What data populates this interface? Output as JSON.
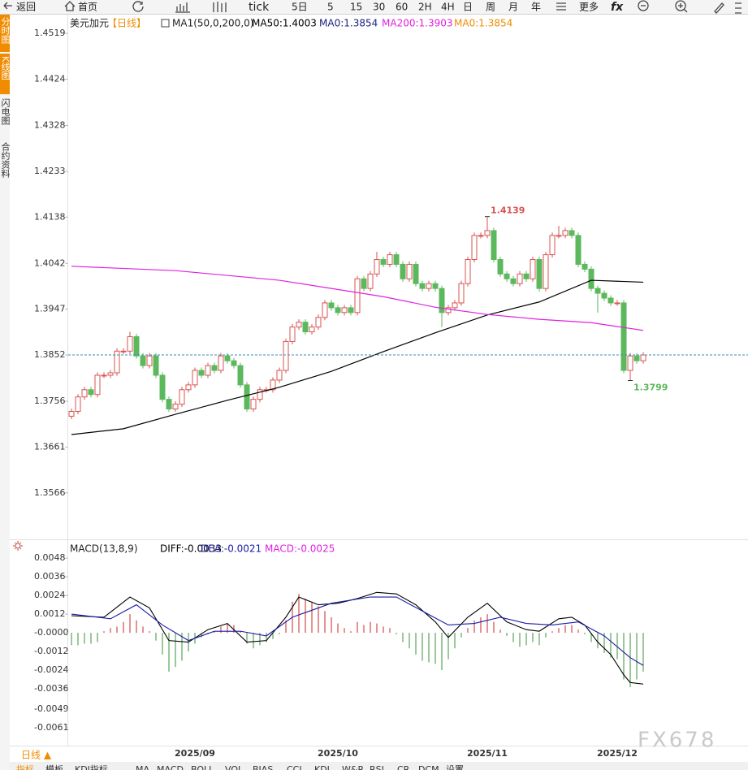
{
  "toolbar": [
    "返回",
    "首页",
    "tick",
    "5日",
    "5",
    "15",
    "30",
    "60",
    "2H",
    "4H",
    "日",
    "周",
    "月",
    "年",
    "更多",
    "fx"
  ],
  "side_tabs": [
    "分时图",
    "K线图",
    "闪电图",
    "合约资料"
  ],
  "footer": {
    "period": "日线 ▲",
    "tabs": [
      "指标",
      "模板",
      "KDJ指标",
      "MA",
      "MACD",
      "BOLL",
      "VOL",
      "BIAS",
      "CCI",
      "KDJ",
      "W&R",
      "RSI",
      "CR",
      "DCM",
      "设置"
    ]
  },
  "watermark": "FX678",
  "chart_data": [
    {
      "type": "candlestick",
      "title": "美元加元",
      "period": "【日线】",
      "indicator": "MA1(50,0,200,0)",
      "up_color": "#d9534f",
      "down_color": "#5cb85c",
      "categories": [
        null,
        null,
        null,
        null,
        null,
        null,
        null,
        null,
        null,
        null,
        null,
        null,
        null,
        null,
        null,
        null,
        null,
        null,
        null,
        "2025/09",
        null,
        null,
        null,
        null,
        null,
        null,
        null,
        null,
        null,
        null,
        null,
        null,
        null,
        null,
        null,
        null,
        null,
        null,
        null,
        null,
        null,
        "2025/10",
        null,
        null,
        null,
        null,
        null,
        null,
        null,
        null,
        null,
        null,
        null,
        null,
        null,
        null,
        null,
        null,
        null,
        null,
        null,
        null,
        null,
        null,
        "2025/11",
        null,
        null,
        null,
        null,
        null,
        null,
        null,
        null,
        null,
        null,
        null,
        null,
        null,
        null,
        null,
        null,
        null,
        null,
        null,
        "2025/12",
        null,
        null,
        null,
        null
      ],
      "open": [
        1.3725,
        1.3735,
        1.3765,
        1.378,
        1.377,
        1.381,
        1.381,
        1.3815,
        1.386,
        1.386,
        1.389,
        1.385,
        1.383,
        1.385,
        1.381,
        1.376,
        1.374,
        1.375,
        1.378,
        1.379,
        1.382,
        1.381,
        1.383,
        1.382,
        1.385,
        1.384,
        1.383,
        1.379,
        1.374,
        1.376,
        1.378,
        1.378,
        1.38,
        1.382,
        1.388,
        1.391,
        1.392,
        1.39,
        1.391,
        1.393,
        1.396,
        1.395,
        1.394,
        1.395,
        1.394,
        1.401,
        1.399,
        1.402,
        1.405,
        1.404,
        1.406,
        1.404,
        1.401,
        1.404,
        1.4,
        1.399,
        1.4,
        1.399,
        1.394,
        1.395,
        1.396,
        1.4,
        1.405,
        1.41,
        1.41,
        1.411,
        1.405,
        1.402,
        1.401,
        1.4,
        1.402,
        1.401,
        1.405,
        1.399,
        1.406,
        1.41,
        1.41,
        1.411,
        1.41,
        1.404,
        1.403,
        1.399,
        1.398,
        1.397,
        1.396,
        1.396,
        1.382,
        1.385,
        1.384
      ],
      "close": [
        1.3735,
        1.3765,
        1.378,
        1.377,
        1.381,
        1.381,
        1.3815,
        1.386,
        1.386,
        1.389,
        1.385,
        1.383,
        1.385,
        1.381,
        1.376,
        1.374,
        1.375,
        1.378,
        1.379,
        1.382,
        1.381,
        1.383,
        1.382,
        1.385,
        1.384,
        1.383,
        1.379,
        1.374,
        1.376,
        1.378,
        1.378,
        1.38,
        1.382,
        1.388,
        1.391,
        1.392,
        1.39,
        1.391,
        1.393,
        1.396,
        1.395,
        1.394,
        1.395,
        1.394,
        1.401,
        1.399,
        1.402,
        1.405,
        1.404,
        1.406,
        1.404,
        1.401,
        1.404,
        1.4,
        1.399,
        1.4,
        1.399,
        1.394,
        1.395,
        1.396,
        1.4,
        1.405,
        1.41,
        1.41,
        1.411,
        1.405,
        1.402,
        1.401,
        1.4,
        1.402,
        1.401,
        1.405,
        1.399,
        1.406,
        1.41,
        1.41,
        1.411,
        1.41,
        1.404,
        1.403,
        1.399,
        1.398,
        1.397,
        1.396,
        1.396,
        1.382,
        1.385,
        1.384,
        1.3852
      ],
      "high": [
        1.3741,
        1.3771,
        1.3786,
        1.3786,
        1.3816,
        1.3816,
        1.3821,
        1.3866,
        1.3866,
        1.39,
        1.3896,
        1.3856,
        1.3856,
        1.3856,
        1.3816,
        1.3766,
        1.3756,
        1.3786,
        1.3796,
        1.3826,
        1.3826,
        1.3836,
        1.3836,
        1.3856,
        1.3856,
        1.3846,
        1.3836,
        1.3796,
        1.3766,
        1.3786,
        1.3786,
        1.3806,
        1.3826,
        1.3886,
        1.3916,
        1.3926,
        1.3926,
        1.3916,
        1.3936,
        1.3966,
        1.3966,
        1.3956,
        1.3956,
        1.3956,
        1.4016,
        1.4016,
        1.4026,
        1.4066,
        1.4056,
        1.4066,
        1.4066,
        1.4046,
        1.4046,
        1.4046,
        1.4006,
        1.4006,
        1.4006,
        1.3996,
        1.3956,
        1.3966,
        1.4006,
        1.4056,
        1.4106,
        1.4106,
        1.4139,
        1.4116,
        1.4056,
        1.4026,
        1.4016,
        1.4026,
        1.4026,
        1.4056,
        1.4056,
        1.4066,
        1.4106,
        1.412,
        1.4116,
        1.4116,
        1.4106,
        1.4046,
        1.4036,
        1.3996,
        1.3986,
        1.3976,
        1.3966,
        1.3966,
        1.3856,
        1.3856,
        1.3858
      ],
      "low": [
        1.3719,
        1.3729,
        1.3759,
        1.3764,
        1.3764,
        1.3804,
        1.3804,
        1.3809,
        1.3854,
        1.3854,
        1.3844,
        1.3824,
        1.3824,
        1.3804,
        1.3754,
        1.3734,
        1.3734,
        1.3744,
        1.3774,
        1.3784,
        1.3804,
        1.3804,
        1.3814,
        1.3814,
        1.3834,
        1.3824,
        1.3784,
        1.3734,
        1.3734,
        1.3754,
        1.3774,
        1.3774,
        1.3794,
        1.3814,
        1.3874,
        1.3904,
        1.3894,
        1.3894,
        1.3904,
        1.3924,
        1.3944,
        1.3934,
        1.3934,
        1.3934,
        1.3934,
        1.3984,
        1.3984,
        1.4014,
        1.4034,
        1.4034,
        1.4034,
        1.4004,
        1.4004,
        1.3994,
        1.3984,
        1.3984,
        1.3984,
        1.391,
        1.3934,
        1.3944,
        1.3954,
        1.3994,
        1.4044,
        1.4094,
        1.4094,
        1.4044,
        1.4014,
        1.4004,
        1.3994,
        1.3994,
        1.4004,
        1.4004,
        1.3984,
        1.3984,
        1.4054,
        1.4094,
        1.4094,
        1.4094,
        1.4034,
        1.4024,
        1.3984,
        1.394,
        1.3964,
        1.3954,
        1.3954,
        1.3814,
        1.3799,
        1.3834,
        1.3834
      ],
      "series": [
        {
          "name": "MA50:1.4003",
          "color": "#000000",
          "x": [
            0,
            8,
            16,
            24,
            32,
            40,
            48,
            56,
            64,
            72,
            80,
            88
          ],
          "values": [
            1.3687,
            1.3699,
            1.3729,
            1.3758,
            1.3785,
            1.3818,
            1.3859,
            1.3898,
            1.3935,
            1.3962,
            1.4007,
            1.4003
          ]
        },
        {
          "name": "MA200:1.3903",
          "color": "#e020e0",
          "x": [
            0,
            16,
            32,
            48,
            56,
            64,
            72,
            80,
            88
          ],
          "values": [
            1.4036,
            1.4027,
            1.4007,
            1.3973,
            1.3951,
            1.3936,
            1.3926,
            1.3919,
            1.3903
          ]
        }
      ],
      "legend_extra": [
        {
          "name": "MA0:1.3854",
          "color": "#1a237e"
        },
        {
          "name": "MA0:1.3854",
          "color": "#f08c00"
        }
      ],
      "last": 1.3852,
      "last_color": "#3a8fb7",
      "annotations": [
        {
          "index": 64,
          "value": 1.4139,
          "color": "#d9534f"
        },
        {
          "index": 86,
          "value": 1.3799,
          "color": "#5cb85c"
        }
      ],
      "ylim": [
        1.3473,
        1.4558
      ],
      "yticks": [
        1.4519,
        1.4424,
        1.4328,
        1.4233,
        1.4138,
        1.4042,
        1.3947,
        1.3852,
        1.3756,
        1.3661,
        1.3566
      ]
    },
    {
      "type": "macd",
      "title": "MACD(13,8,9)",
      "hist_name": "MACD:-0.0025",
      "hist_color": "#e020e0",
      "up_color": "#d24b4b",
      "down_color": "#5aa45a",
      "values": [
        -0.0008,
        -0.0008,
        -0.0007,
        -0.0007,
        -0.0006,
        0.0001,
        0.0003,
        0.0004,
        0.0007,
        0.0012,
        0.0008,
        0.0004,
        0.0001,
        -0.0005,
        -0.0014,
        -0.0025,
        -0.0022,
        -0.0018,
        -0.0012,
        -0.0007,
        -0.0003,
        -0.0001,
        0.0001,
        0.0004,
        0.0006,
        0.0005,
        0.0001,
        -0.0007,
        -0.001,
        -0.0008,
        -0.0006,
        -0.0004,
        -0.0001,
        0.0008,
        0.002,
        0.0025,
        0.0022,
        0.002,
        0.0017,
        0.0014,
        0.001,
        0.0006,
        0.0003,
        0.0001,
        0.0007,
        0.0005,
        0.0007,
        0.0006,
        0.0004,
        0.0003,
        -0.0001,
        -0.0006,
        -0.001,
        -0.0014,
        -0.0018,
        -0.0019,
        -0.002,
        -0.0024,
        -0.0017,
        -0.001,
        -0.0003,
        0.0003,
        0.0008,
        0.001,
        0.0012,
        0.0007,
        0.0002,
        -0.0002,
        -0.0006,
        -0.0009,
        -0.0008,
        -0.0006,
        -0.0008,
        -0.0003,
        0.0001,
        0.0003,
        0.0005,
        0.0005,
        0.0002,
        -0.0001,
        -0.0006,
        -0.001,
        -0.0013,
        -0.0016,
        -0.0017,
        -0.003,
        -0.0035,
        -0.003,
        -0.0025
      ],
      "series": [
        {
          "name": "DIFF:-0.0033",
          "color": "#000000",
          "x": [
            0,
            5,
            9,
            12,
            15,
            18,
            21,
            24,
            27,
            30,
            33,
            35,
            38,
            41,
            44,
            47,
            50,
            53,
            56,
            58,
            61,
            64,
            67,
            70,
            72,
            75,
            77,
            79,
            81,
            83,
            85,
            86,
            88
          ],
          "values": [
            0.0011,
            0.001,
            0.0023,
            0.0016,
            -0.0005,
            -0.0006,
            0.0002,
            0.0006,
            -0.0006,
            -0.0005,
            0.001,
            0.0023,
            0.0018,
            0.0019,
            0.0022,
            0.0026,
            0.0025,
            0.0018,
            0.0007,
            -0.0003,
            0.001,
            0.0019,
            0.0007,
            0.0002,
            0.0001,
            0.0009,
            0.001,
            0.0005,
            -0.0006,
            -0.0014,
            -0.0027,
            -0.0032,
            -0.0033
          ]
        },
        {
          "name": "DEA:-0.0021",
          "color": "#1a1aa6",
          "x": [
            0,
            6,
            10,
            14,
            18,
            22,
            26,
            30,
            34,
            40,
            46,
            50,
            54,
            58,
            62,
            66,
            70,
            74,
            78,
            82,
            86,
            88
          ],
          "values": [
            0.0012,
            0.0009,
            0.0018,
            0.0005,
            -0.0005,
            0.0001,
            0.0001,
            -0.0002,
            0.001,
            0.0019,
            0.0023,
            0.0023,
            0.0014,
            0.0005,
            0.0006,
            0.001,
            0.0006,
            0.0005,
            0.0007,
            -0.0002,
            -0.0016,
            -0.0021
          ]
        }
      ],
      "ylim": [
        -0.0071,
        0.0058
      ],
      "yticks": [
        0.0048,
        0.0036,
        0.0024,
        0.0012,
        {
          "value": 0,
          "label": "-0.0000"
        },
        -0.0012,
        -0.0024,
        -0.0036,
        -0.0049,
        -0.0061
      ]
    }
  ]
}
